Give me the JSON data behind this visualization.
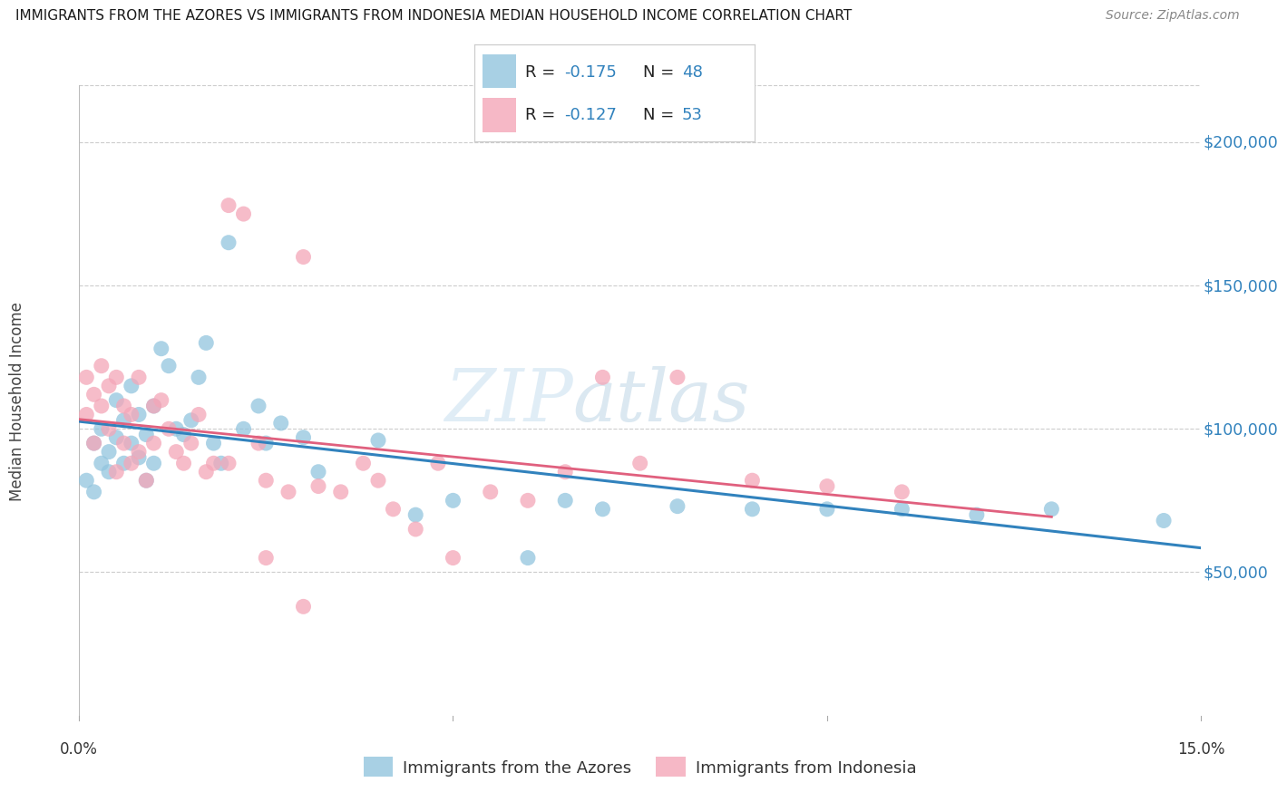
{
  "title": "IMMIGRANTS FROM THE AZORES VS IMMIGRANTS FROM INDONESIA MEDIAN HOUSEHOLD INCOME CORRELATION CHART",
  "source": "Source: ZipAtlas.com",
  "ylabel": "Median Household Income",
  "legend_labels": [
    "Immigrants from the Azores",
    "Immigrants from Indonesia"
  ],
  "r_azores": -0.175,
  "n_azores": 48,
  "r_indonesia": -0.127,
  "n_indonesia": 53,
  "color_azores": "#92c5de",
  "color_indonesia": "#f4a6b8",
  "line_color_azores": "#3182bd",
  "line_color_indonesia": "#e0607e",
  "tick_color": "#3182bd",
  "xlim": [
    0.0,
    0.15
  ],
  "ylim": [
    0,
    220000
  ],
  "yticks": [
    50000,
    100000,
    150000,
    200000
  ],
  "background_color": "#ffffff",
  "grid_color": "#cccccc",
  "watermark_zip": "ZIP",
  "watermark_atlas": "atlas",
  "azores_x": [
    0.001,
    0.002,
    0.002,
    0.003,
    0.003,
    0.004,
    0.004,
    0.005,
    0.005,
    0.006,
    0.006,
    0.007,
    0.007,
    0.008,
    0.008,
    0.009,
    0.009,
    0.01,
    0.01,
    0.011,
    0.012,
    0.013,
    0.014,
    0.015,
    0.016,
    0.017,
    0.018,
    0.019,
    0.02,
    0.022,
    0.024,
    0.025,
    0.027,
    0.03,
    0.032,
    0.04,
    0.045,
    0.05,
    0.06,
    0.065,
    0.07,
    0.08,
    0.09,
    0.1,
    0.11,
    0.12,
    0.13,
    0.145
  ],
  "azores_y": [
    82000,
    95000,
    78000,
    88000,
    100000,
    92000,
    85000,
    97000,
    110000,
    88000,
    103000,
    115000,
    95000,
    90000,
    105000,
    98000,
    82000,
    108000,
    88000,
    128000,
    122000,
    100000,
    98000,
    103000,
    118000,
    130000,
    95000,
    88000,
    165000,
    100000,
    108000,
    95000,
    102000,
    97000,
    85000,
    96000,
    70000,
    75000,
    55000,
    75000,
    72000,
    73000,
    72000,
    72000,
    72000,
    70000,
    72000,
    68000
  ],
  "indonesia_x": [
    0.001,
    0.001,
    0.002,
    0.002,
    0.003,
    0.003,
    0.004,
    0.004,
    0.005,
    0.005,
    0.006,
    0.006,
    0.007,
    0.007,
    0.008,
    0.008,
    0.009,
    0.01,
    0.01,
    0.011,
    0.012,
    0.013,
    0.014,
    0.015,
    0.016,
    0.017,
    0.018,
    0.02,
    0.022,
    0.024,
    0.025,
    0.028,
    0.03,
    0.032,
    0.035,
    0.038,
    0.04,
    0.042,
    0.045,
    0.048,
    0.05,
    0.055,
    0.06,
    0.065,
    0.07,
    0.075,
    0.08,
    0.09,
    0.1,
    0.11,
    0.03,
    0.02,
    0.025
  ],
  "indonesia_y": [
    105000,
    118000,
    112000,
    95000,
    108000,
    122000,
    115000,
    100000,
    118000,
    85000,
    108000,
    95000,
    88000,
    105000,
    92000,
    118000,
    82000,
    95000,
    108000,
    110000,
    100000,
    92000,
    88000,
    95000,
    105000,
    85000,
    88000,
    178000,
    175000,
    95000,
    82000,
    78000,
    160000,
    80000,
    78000,
    88000,
    82000,
    72000,
    65000,
    88000,
    55000,
    78000,
    75000,
    85000,
    118000,
    88000,
    118000,
    82000,
    80000,
    78000,
    38000,
    88000,
    55000
  ]
}
